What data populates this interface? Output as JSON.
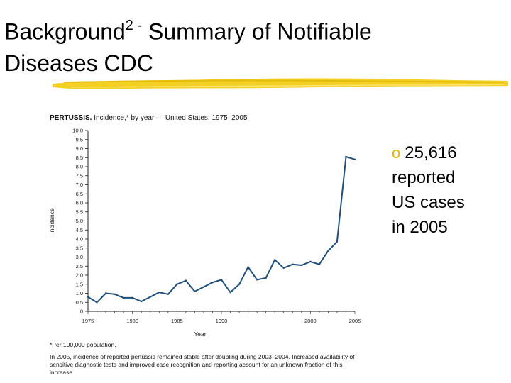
{
  "slide": {
    "title_main": "Background",
    "title_sup": "2 -",
    "title_rest": " Summary of Notifiable",
    "title_line2": "Diseases CDC"
  },
  "figure": {
    "title_bold": "PERTUSSIS.",
    "title_rest": " Incidence,* by year — United States, 1975–2005",
    "footnote": "*Per 100,000 population.",
    "note": "In 2005, incidence of reported pertussis remained stable after doubling during 2003–2004. Increased availability of sensitive diagnostic tests and improved case recognition and reporting account for an unknown fraction of this increase."
  },
  "bullet": {
    "marker": "o",
    "text_lines": [
      "25,616",
      "reported",
      "US cases",
      "in 2005"
    ]
  },
  "colors": {
    "line": "#1f4e79",
    "accent_highlight": "#f2cc0c",
    "bullet_marker": "#e6b800"
  },
  "chart_data": {
    "type": "line",
    "title": "PERTUSSIS. Incidence,* by year — United States, 1975–2005",
    "xlabel": "Year",
    "ylabel": "Incidence",
    "xlim": [
      1975,
      2005
    ],
    "ylim": [
      0,
      10.0
    ],
    "x_ticks": [
      1975,
      1980,
      1985,
      1990,
      2000,
      2005
    ],
    "x_tick_labels": [
      "1975",
      "1980",
      "1985",
      "1990",
      "2000",
      "2005"
    ],
    "y_ticks": [
      0,
      0.5,
      1.0,
      1.5,
      2.0,
      2.5,
      3.0,
      3.5,
      4.0,
      4.5,
      5.0,
      5.5,
      6.0,
      6.5,
      7.0,
      7.5,
      8.0,
      8.5,
      9.0,
      9.5,
      10.0
    ],
    "y_tick_labels": [
      "0",
      "0.5",
      "1.0",
      "1.5",
      "2.0",
      "2.5",
      "3.0",
      "3.5",
      "4.0",
      "4.5",
      "5.0",
      "5.5",
      "6.0",
      "6.5",
      "7.0",
      "7.5",
      "8.0",
      "8.5",
      "9.0",
      "9.5",
      "10.0"
    ],
    "grid": false,
    "series": [
      {
        "name": "Incidence",
        "x": [
          1975,
          1976,
          1977,
          1978,
          1979,
          1980,
          1981,
          1982,
          1983,
          1984,
          1985,
          1986,
          1987,
          1988,
          1989,
          1990,
          1991,
          1992,
          1993,
          1994,
          1995,
          1996,
          1997,
          1998,
          1999,
          2000,
          2001,
          2002,
          2003,
          2004,
          2005
        ],
        "values": [
          0.8,
          0.5,
          1.0,
          0.95,
          0.75,
          0.75,
          0.55,
          0.8,
          1.05,
          0.95,
          1.5,
          1.7,
          1.1,
          1.35,
          1.6,
          1.75,
          1.05,
          1.5,
          2.45,
          1.75,
          1.85,
          2.85,
          2.4,
          2.6,
          2.55,
          2.75,
          2.6,
          3.35,
          3.85,
          8.55,
          8.4
        ]
      }
    ]
  }
}
